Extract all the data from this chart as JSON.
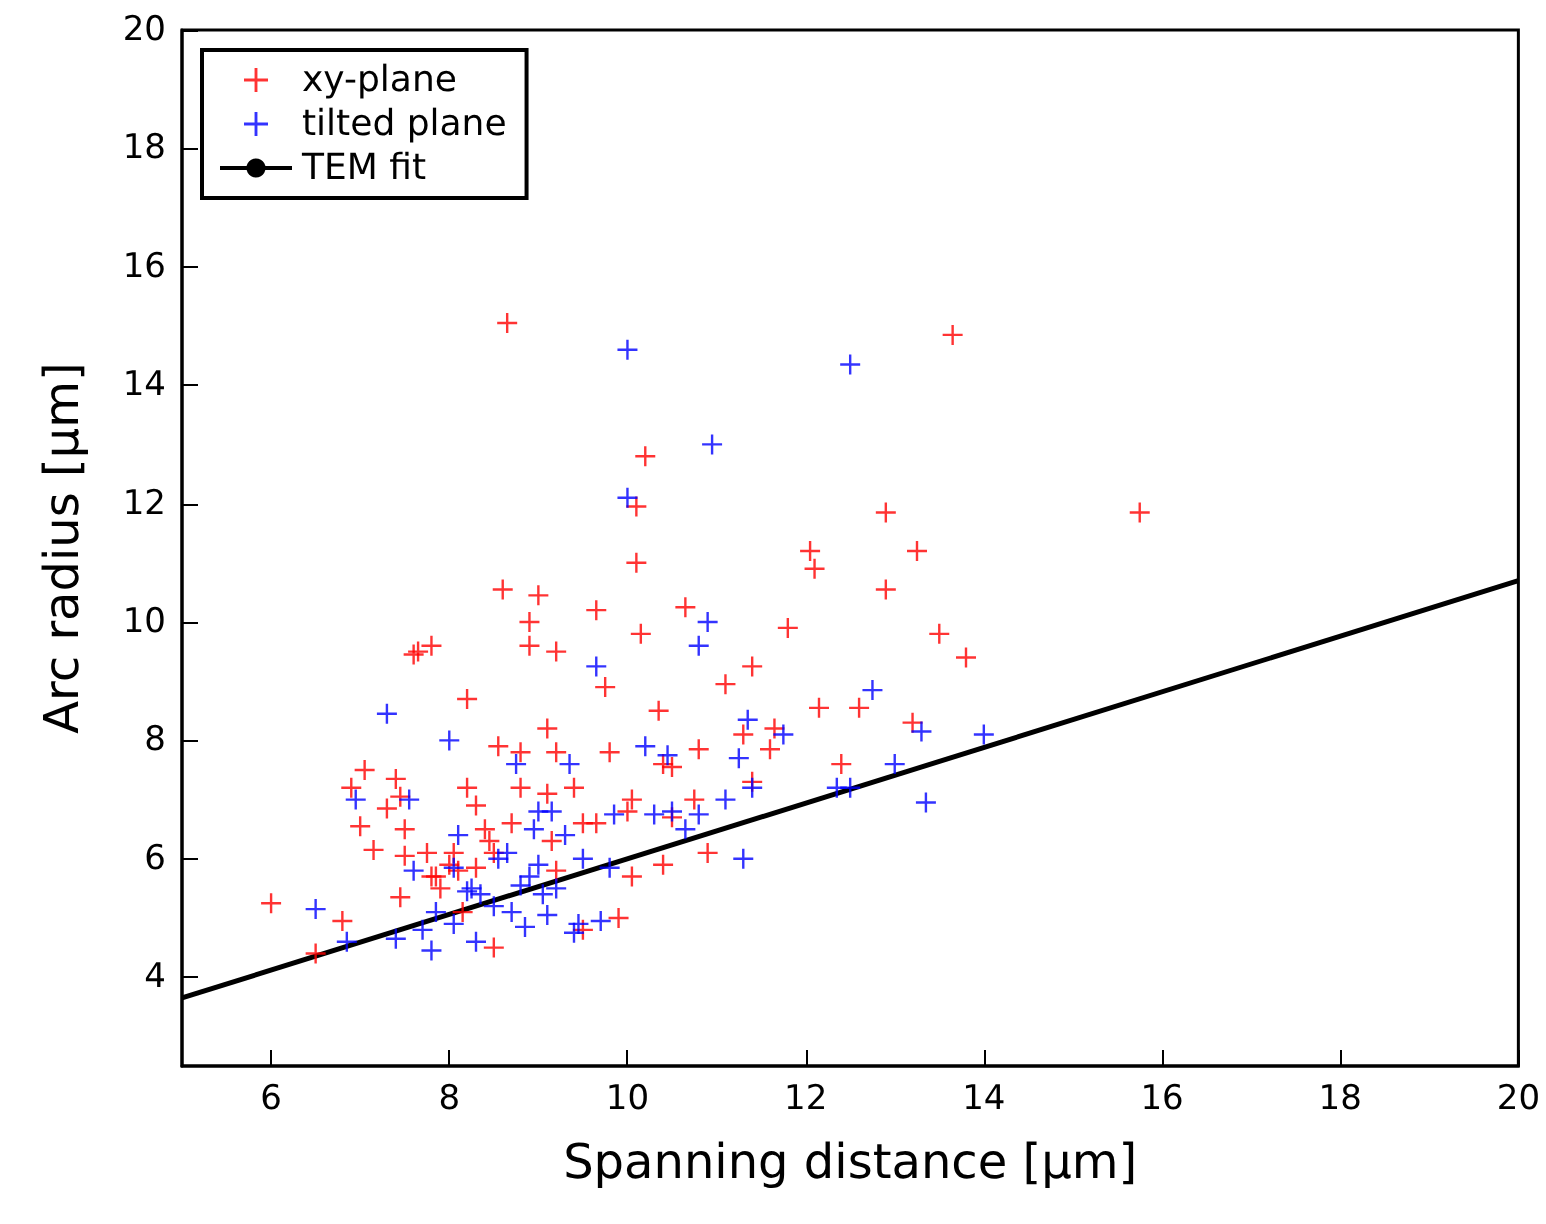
{
  "chart_data": {
    "type": "scatter",
    "xlabel": "Spanning distance [µm]",
    "ylabel": "Arc radius [µm]",
    "xlim": [
      5,
      20
    ],
    "xticks": [
      6,
      8,
      10,
      12,
      14,
      16,
      18,
      20
    ],
    "ylim": [
      2.5,
      20
    ],
    "yticks": [
      4,
      6,
      8,
      10,
      12,
      14,
      16,
      18,
      20
    ],
    "grid": false,
    "legend": "top left",
    "marker": "cross",
    "series": [
      {
        "name": "xy-plane",
        "color": "#ff0000",
        "x": [
          6.0,
          6.5,
          6.8,
          6.9,
          7.0,
          7.05,
          7.15,
          7.3,
          7.4,
          7.45,
          7.5,
          7.5,
          7.45,
          7.6,
          7.65,
          7.8,
          7.75,
          7.8,
          7.9,
          7.85,
          8.0,
          8.05,
          8.1,
          8.15,
          8.2,
          8.2,
          8.3,
          8.3,
          8.4,
          8.45,
          8.5,
          8.5,
          8.55,
          8.6,
          8.65,
          8.7,
          8.8,
          8.8,
          8.9,
          8.9,
          9.0,
          9.1,
          9.1,
          9.15,
          9.2,
          9.2,
          9.2,
          9.4,
          9.5,
          9.5,
          9.65,
          9.65,
          9.75,
          9.8,
          9.9,
          10.0,
          10.05,
          10.05,
          10.1,
          10.1,
          10.15,
          10.2,
          10.35,
          10.4,
          10.4,
          10.5,
          10.65,
          10.75,
          10.8,
          10.9,
          11.1,
          11.4,
          11.4,
          11.6,
          11.65,
          11.8,
          12.05,
          12.1,
          12.15,
          12.4,
          12.6,
          12.9,
          12.9,
          13.2,
          13.25,
          13.5,
          13.65,
          13.8,
          15.75,
          10.5,
          11.3
        ],
        "values": [
          5.25,
          4.4,
          4.95,
          7.2,
          6.55,
          7.5,
          6.15,
          6.85,
          7.35,
          7.05,
          6.5,
          6.05,
          5.35,
          9.45,
          9.5,
          9.6,
          6.1,
          5.7,
          5.5,
          5.7,
          5.9,
          6.1,
          5.8,
          5.1,
          8.7,
          7.2,
          6.9,
          5.85,
          6.5,
          6.3,
          4.5,
          6.1,
          7.9,
          10.55,
          15.05,
          6.6,
          7.8,
          7.2,
          9.6,
          10.0,
          10.45,
          8.2,
          7.1,
          6.3,
          7.8,
          9.5,
          5.8,
          7.2,
          6.6,
          4.8,
          10.2,
          6.6,
          8.9,
          7.8,
          5.0,
          6.8,
          7.0,
          5.7,
          11.95,
          11.0,
          9.8,
          12.8,
          8.5,
          5.9,
          7.6,
          7.55,
          10.25,
          7.0,
          7.85,
          6.1,
          8.95,
          9.25,
          7.3,
          7.85,
          8.2,
          9.9,
          11.2,
          10.9,
          8.55,
          7.6,
          8.55,
          11.85,
          10.55,
          8.3,
          11.2,
          9.8,
          14.85,
          9.4,
          11.85,
          6.7,
          8.1
        ]
      },
      {
        "name": "tilted plane",
        "color": "#0000ff",
        "x": [
          6.5,
          6.85,
          6.95,
          7.3,
          7.4,
          7.55,
          7.6,
          7.7,
          7.8,
          7.85,
          8.0,
          8.05,
          8.05,
          8.1,
          8.2,
          8.25,
          8.3,
          8.35,
          8.5,
          8.55,
          8.65,
          8.7,
          8.75,
          8.8,
          8.85,
          8.9,
          8.95,
          9.0,
          9.0,
          9.05,
          9.1,
          9.15,
          9.2,
          9.3,
          9.35,
          9.4,
          9.45,
          9.5,
          9.65,
          9.7,
          9.8,
          9.85,
          10.0,
          10.0,
          10.2,
          10.3,
          10.45,
          10.5,
          10.65,
          10.8,
          10.9,
          10.8,
          10.95,
          11.1,
          11.25,
          11.3,
          11.35,
          11.4,
          11.75,
          12.35,
          12.5,
          12.5,
          12.75,
          13.0,
          13.3,
          13.35,
          14.0
        ],
        "values": [
          5.15,
          4.6,
          7.0,
          8.45,
          4.65,
          7.0,
          5.8,
          4.8,
          4.45,
          5.1,
          8.0,
          5.85,
          4.9,
          6.4,
          5.45,
          5.5,
          4.6,
          5.4,
          5.2,
          6.0,
          6.1,
          5.1,
          7.6,
          5.55,
          4.85,
          5.7,
          6.5,
          6.8,
          5.9,
          5.4,
          5.05,
          6.8,
          5.5,
          6.4,
          7.6,
          4.75,
          4.9,
          6.0,
          9.25,
          4.95,
          5.85,
          6.75,
          12.1,
          14.6,
          7.9,
          6.75,
          7.75,
          6.8,
          6.5,
          9.6,
          10.0,
          6.75,
          13.0,
          7.0,
          7.7,
          6.0,
          8.35,
          7.2,
          8.1,
          7.2,
          7.2,
          14.35,
          8.85,
          7.6,
          8.15,
          6.95,
          8.1
        ]
      },
      {
        "name": "TEM fit",
        "type": "line",
        "color": "#000000",
        "marker": "none",
        "x": [
          5,
          20
        ],
        "values": [
          3.65,
          10.7
        ]
      }
    ]
  }
}
